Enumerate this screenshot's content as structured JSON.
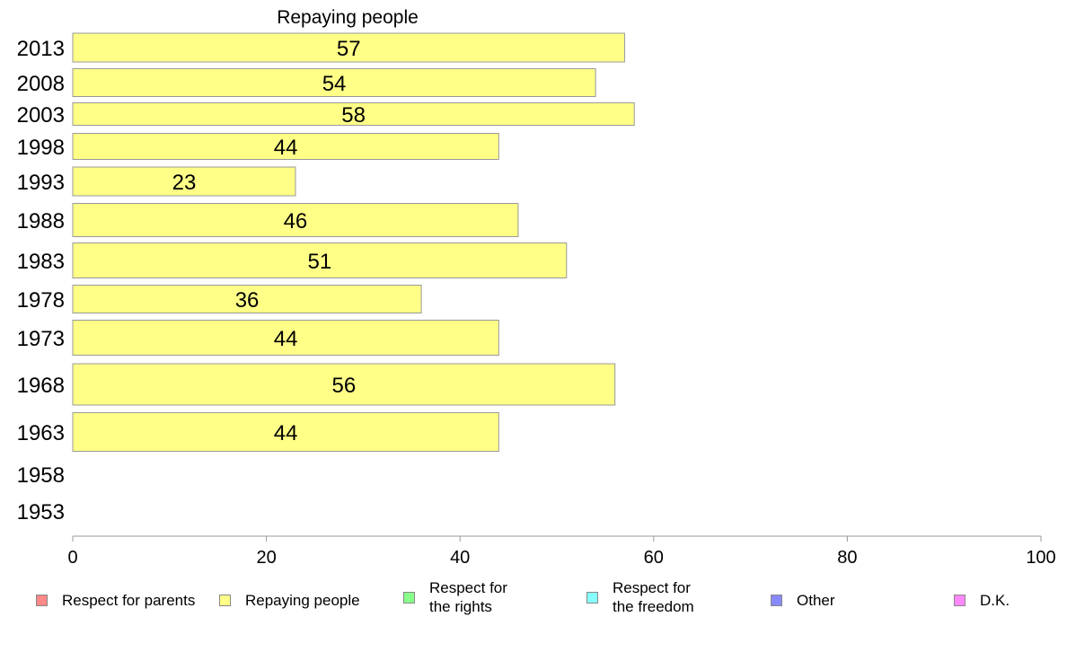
{
  "chart_data": {
    "type": "bar",
    "orientation": "horizontal",
    "title": "Repaying people",
    "categories": [
      "2013",
      "2008",
      "2003",
      "1998",
      "1993",
      "1988",
      "1983",
      "1978",
      "1973",
      "1968",
      "1963",
      "1958",
      "1953"
    ],
    "series": [
      {
        "name": "Repaying people",
        "color": "#ffff88",
        "values": [
          57,
          54,
          58,
          44,
          23,
          46,
          51,
          36,
          44,
          56,
          44,
          null,
          null
        ],
        "labels": [
          "57",
          "54",
          "58",
          "44",
          "23",
          "46",
          "51",
          "36",
          "44",
          "56",
          "44",
          "",
          ""
        ]
      }
    ],
    "xlim": [
      0,
      100
    ],
    "xticks": [
      "0",
      "20",
      "40",
      "60",
      "80",
      "100"
    ],
    "grid": false,
    "legend_position": "bottom"
  },
  "legend": {
    "items": [
      {
        "label": "Respect for parents",
        "color": "#ff8888"
      },
      {
        "label": "Repaying people",
        "color": "#ffff88"
      },
      {
        "label": "Respect for\nthe rights",
        "color": "#88ff88"
      },
      {
        "label": "Respect for\nthe freedom",
        "color": "#88ffff"
      },
      {
        "label": "Other",
        "color": "#8888ff"
      },
      {
        "label": "D.K.",
        "color": "#ff88ff"
      }
    ]
  }
}
